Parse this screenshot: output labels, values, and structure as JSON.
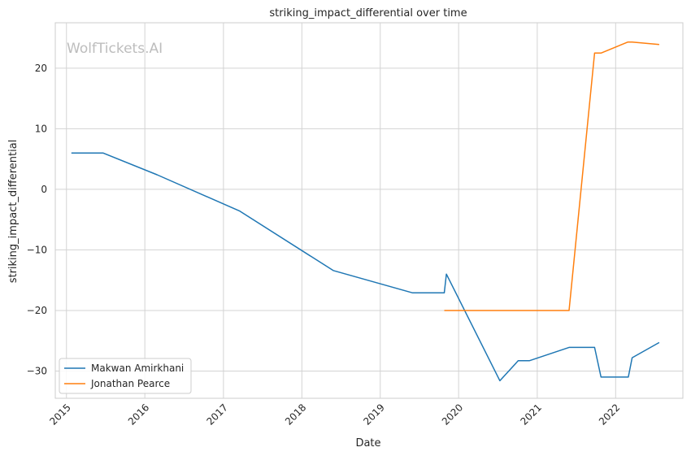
{
  "watermark": "WolfTickets.AI",
  "chart_data": {
    "type": "line",
    "title": "striking_impact_differential over time",
    "xlabel": "Date",
    "ylabel": "striking_impact_differential",
    "x_axis": "date",
    "xlim": [
      "2014-11-10",
      "2022-11-10"
    ],
    "ylim": [
      -34.5,
      27.5
    ],
    "x_ticks": [
      "2015",
      "2016",
      "2017",
      "2018",
      "2019",
      "2020",
      "2021",
      "2022"
    ],
    "y_ticks": [
      -30,
      -20,
      -10,
      0,
      10,
      20
    ],
    "grid": true,
    "legend_position": "lower-left",
    "series": [
      {
        "name": "Makwan Amirkhani",
        "color": "#1f77b4",
        "points": [
          [
            "2015-01-24",
            6.0
          ],
          [
            "2015-06-20",
            6.0
          ],
          [
            "2016-02-27",
            2.4
          ],
          [
            "2017-03-18",
            -3.6
          ],
          [
            "2018-05-27",
            -13.4
          ],
          [
            "2019-06-01",
            -17.1
          ],
          [
            "2019-10-26",
            -17.1
          ],
          [
            "2019-11-05",
            -14.0
          ],
          [
            "2020-07-11",
            -31.6
          ],
          [
            "2020-10-04",
            -28.3
          ],
          [
            "2020-11-25",
            -28.3
          ],
          [
            "2021-05-29",
            -26.1
          ],
          [
            "2021-09-25",
            -26.1
          ],
          [
            "2021-10-25",
            -31.0
          ],
          [
            "2022-03-01",
            -31.0
          ],
          [
            "2022-03-19",
            -27.8
          ],
          [
            "2022-07-23",
            -25.3
          ]
        ]
      },
      {
        "name": "Jonathan Pearce",
        "color": "#ff7f0e",
        "points": [
          [
            "2019-10-26",
            -20.0
          ],
          [
            "2021-05-29",
            -20.0
          ],
          [
            "2021-09-25",
            22.5
          ],
          [
            "2021-10-25",
            22.5
          ],
          [
            "2022-02-26",
            24.3
          ],
          [
            "2022-03-19",
            24.3
          ],
          [
            "2022-07-23",
            23.9
          ]
        ]
      }
    ]
  }
}
